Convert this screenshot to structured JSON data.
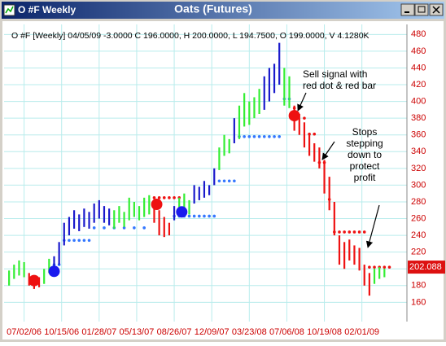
{
  "window_title": "O #F Weekly",
  "chart_data": {
    "type": "ohlc",
    "title": "Oats (Futures)",
    "header": "O #F [Weekly] 04/05/09 -3.0000 C 196.0000, H 200.0000, L 194.7500, O 199.0000, V 4.1280K",
    "xlim": [
      -8,
      153
    ],
    "xticks": [
      {
        "value": 0,
        "label": "07/02/06"
      },
      {
        "value": 15,
        "label": "10/15/06"
      },
      {
        "value": 30,
        "label": "01/28/07"
      },
      {
        "value": 45,
        "label": "05/13/07"
      },
      {
        "value": 60,
        "label": "08/26/07"
      },
      {
        "value": 75,
        "label": "12/09/07"
      },
      {
        "value": 90,
        "label": "03/23/08"
      },
      {
        "value": 105,
        "label": "07/06/08"
      },
      {
        "value": 120,
        "label": "10/19/08"
      },
      {
        "value": 135,
        "label": "02/01/09"
      }
    ],
    "ylim": [
      137,
      492
    ],
    "yticks": [
      160,
      180,
      200,
      220,
      240,
      260,
      280,
      300,
      320,
      340,
      360,
      380,
      400,
      420,
      440,
      460,
      480
    ],
    "grid": true,
    "last_price": 202.088,
    "series": [
      {
        "color": "#33ee33",
        "x": [
          -6,
          -4,
          -2,
          0,
          8,
          10,
          36,
          38,
          40,
          42,
          44,
          46,
          48,
          50,
          62,
          64,
          66,
          78,
          80,
          82,
          86,
          88,
          90,
          92,
          94,
          104,
          106,
          140,
          142,
          144
        ],
        "high": [
          198,
          205,
          210,
          208,
          200,
          212,
          270,
          275,
          268,
          285,
          280,
          275,
          285,
          288,
          285,
          290,
          282,
          345,
          360,
          355,
          395,
          410,
          400,
          405,
          415,
          440,
          430,
          200,
          202,
          200
        ],
        "low": [
          180,
          188,
          192,
          190,
          182,
          195,
          248,
          255,
          250,
          258,
          262,
          258,
          262,
          265,
          262,
          268,
          265,
          318,
          335,
          338,
          355,
          370,
          372,
          380,
          385,
          395,
          392,
          182,
          188,
          190
        ]
      },
      {
        "color": "#1a1acc",
        "x": [
          12,
          14,
          16,
          18,
          20,
          22,
          24,
          26,
          28,
          30,
          32,
          34,
          60,
          68,
          70,
          72,
          74,
          76,
          84,
          96,
          98,
          100,
          102
        ],
        "high": [
          215,
          232,
          255,
          262,
          270,
          265,
          272,
          268,
          278,
          282,
          275,
          272,
          275,
          300,
          298,
          305,
          300,
          320,
          380,
          430,
          440,
          445,
          470
        ],
        "low": [
          198,
          205,
          228,
          240,
          248,
          245,
          250,
          248,
          255,
          260,
          255,
          252,
          258,
          278,
          282,
          285,
          288,
          300,
          350,
          390,
          400,
          410,
          420
        ]
      },
      {
        "color": "#ee1111",
        "x": [
          2,
          4,
          6,
          52,
          54,
          56,
          58,
          108,
          110,
          112,
          114,
          116,
          118,
          120,
          122,
          124,
          126,
          128,
          130,
          132,
          134,
          136,
          138
        ],
        "high": [
          195,
          192,
          190,
          280,
          270,
          262,
          255,
          395,
          385,
          375,
          360,
          350,
          345,
          330,
          310,
          280,
          240,
          232,
          235,
          228,
          225,
          205,
          195
        ],
        "low": [
          180,
          176,
          178,
          255,
          240,
          238,
          240,
          365,
          360,
          345,
          335,
          328,
          320,
          290,
          270,
          240,
          205,
          200,
          210,
          205,
          198,
          180,
          168
        ]
      }
    ],
    "stops": [
      {
        "color": "#3377ff",
        "x": [
          12,
          14,
          16,
          18,
          20,
          22,
          24,
          26,
          28,
          32,
          36,
          40,
          44,
          48,
          60,
          62,
          64,
          66,
          68,
          70,
          72,
          74,
          76,
          78,
          80,
          82,
          84,
          86,
          88,
          90,
          92,
          94,
          96,
          98,
          100,
          102,
          104,
          106
        ],
        "values": [
          205,
          205,
          234,
          234,
          234,
          234,
          234,
          234,
          249,
          249,
          249,
          249,
          249,
          249,
          263,
          263,
          263,
          263,
          263,
          263,
          263,
          263,
          263,
          305,
          305,
          305,
          305,
          358,
          358,
          358,
          358,
          358,
          358,
          358,
          358,
          358,
          403,
          403
        ]
      },
      {
        "color": "#ee1111",
        "x": [
          52,
          54,
          56,
          58,
          60,
          62,
          108,
          110,
          112,
          114,
          116,
          118,
          120,
          122,
          124,
          126,
          128,
          130,
          132,
          134,
          136,
          138,
          140,
          142,
          144,
          146
        ],
        "values": [
          285,
          285,
          285,
          285,
          285,
          285,
          392,
          392,
          380,
          361,
          361,
          327,
          327,
          283,
          244,
          244,
          244,
          244,
          244,
          244,
          244,
          202,
          202,
          202,
          202,
          202
        ]
      }
    ],
    "signals": [
      {
        "color": "#ee1111",
        "x": [
          4,
          53,
          108
        ],
        "values": [
          186,
          277,
          383
        ]
      },
      {
        "color": "#1a1aee",
        "x": [
          12,
          63
        ],
        "values": [
          197,
          268
        ]
      }
    ],
    "annotations": [
      {
        "lines": [
          "Sell signal with",
          "red dot & red bar"
        ]
      },
      {
        "lines": [
          "Stops",
          "stepping",
          "down to",
          "protect",
          "profit"
        ]
      }
    ]
  }
}
